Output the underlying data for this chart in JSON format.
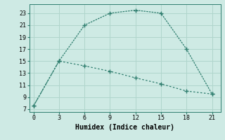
{
  "line1_x": [
    0,
    3,
    6,
    9,
    12,
    15,
    18,
    21
  ],
  "line1_y": [
    7.5,
    15,
    21,
    23,
    23.5,
    23,
    17,
    9.5
  ],
  "line2_x": [
    0,
    3,
    6,
    9,
    12,
    15,
    18,
    21
  ],
  "line2_y": [
    7.5,
    15,
    14.2,
    13.3,
    12.2,
    11.2,
    10.0,
    9.5
  ],
  "line_color": "#2e7d6e",
  "bg_color": "#ceeae4",
  "grid_color": "#b0d5cc",
  "xlabel": "Humidex (Indice chaleur)",
  "xlim": [
    -0.5,
    22
  ],
  "ylim": [
    6.5,
    24.5
  ],
  "xticks": [
    0,
    3,
    6,
    9,
    12,
    15,
    18,
    21
  ],
  "yticks": [
    7,
    9,
    11,
    13,
    15,
    17,
    19,
    21,
    23
  ],
  "tick_fontsize": 6.0,
  "xlabel_fontsize": 7.0
}
